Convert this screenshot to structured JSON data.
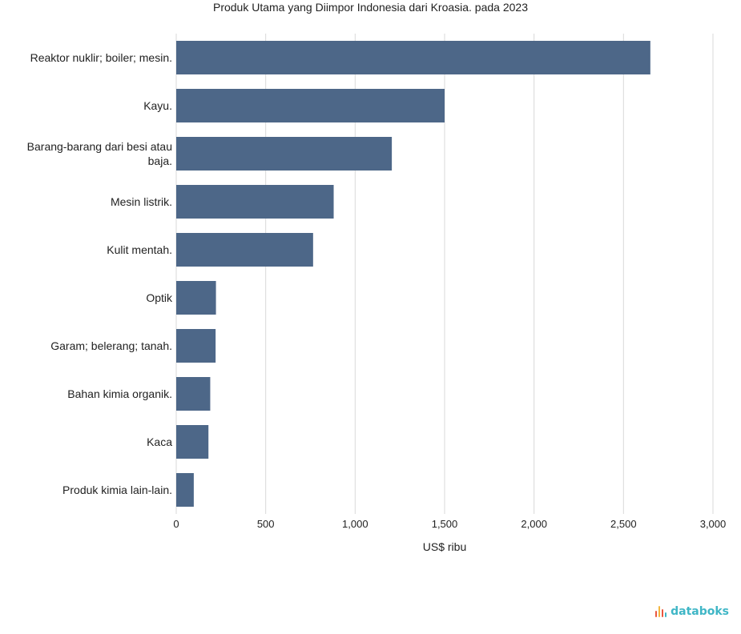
{
  "chart_data": {
    "type": "bar",
    "orientation": "horizontal",
    "title": "Produk Utama yang Diimpor Indonesia dari Kroasia. pada 2023",
    "xlabel": "US$ ribu",
    "ylabel": "",
    "categories": [
      "Reaktor nuklir; boiler; mesin.",
      "Kayu.",
      "Barang-barang dari besi atau baja.",
      "Mesin listrik.",
      "Kulit mentah.",
      "Optik",
      "Garam; belerang; tanah.",
      "Bahan kimia organik.",
      "Kaca",
      "Produk kimia lain-lain."
    ],
    "values": [
      2650,
      1500,
      1205,
      880,
      765,
      222,
      220,
      190,
      180,
      98
    ],
    "xlim": [
      0,
      3000
    ],
    "xticks": [
      0,
      500,
      1000,
      1500,
      2000,
      2500,
      3000
    ],
    "xtick_labels": [
      "0",
      "500",
      "1,000",
      "1,500",
      "2,000",
      "2,500",
      "3,000"
    ],
    "grid": "vertical",
    "bar_color": "#4d6788",
    "grid_color": "#d9d9d9"
  },
  "brand": {
    "name": "databoks",
    "colors": [
      "#e9573f",
      "#f4b63f",
      "#3fb6c6"
    ]
  }
}
